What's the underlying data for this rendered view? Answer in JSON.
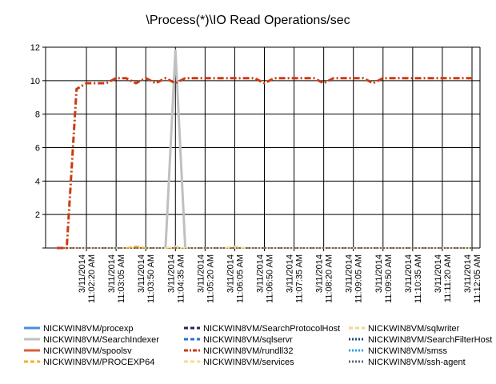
{
  "chart_data": {
    "type": "line",
    "title": "\\Process(*)\\IO Read Operations/sec",
    "xlabel": "",
    "ylabel": "",
    "ylim": [
      0,
      12
    ],
    "yticks": [
      0,
      2,
      4,
      6,
      8,
      10,
      12
    ],
    "ytick_labels": [
      "",
      "2",
      "4",
      "6",
      "8",
      "10",
      "12"
    ],
    "grid": true,
    "legend_position": "bottom",
    "x_tick_labels": [
      [
        "3/11/2014",
        "11:02:20 AM"
      ],
      [
        "3/11/2014",
        "11:03:05 AM"
      ],
      [
        "3/11/2014",
        "11:03:50 AM"
      ],
      [
        "3/11/2014",
        "11:04:35 AM"
      ],
      [
        "3/11/2014",
        "11:05:20 AM"
      ],
      [
        "3/11/2014",
        "11:06:05 AM"
      ],
      [
        "3/11/2014",
        "11:06:50 AM"
      ],
      [
        "3/11/2014",
        "11:07:35 AM"
      ],
      [
        "3/11/2014",
        "11:08:20 AM"
      ],
      [
        "3/11/2014",
        "11:09:05 AM"
      ],
      [
        "3/11/2014",
        "11:09:50 AM"
      ],
      [
        "3/11/2014",
        "11:10:35 AM"
      ],
      [
        "3/11/2014",
        "11:11:20 AM"
      ],
      [
        "3/11/2014",
        "11:12:05 AM"
      ]
    ],
    "x": [
      "11:01:35",
      "11:01:50",
      "11:02:05",
      "11:02:20",
      "11:02:35",
      "11:02:50",
      "11:03:05",
      "11:03:20",
      "11:03:35",
      "11:03:50",
      "11:04:05",
      "11:04:20",
      "11:04:35",
      "11:04:50",
      "11:05:05",
      "11:05:20",
      "11:05:35",
      "11:05:50",
      "11:06:05",
      "11:06:20",
      "11:06:35",
      "11:06:50",
      "11:07:05",
      "11:07:20",
      "11:07:35",
      "11:07:50",
      "11:08:05",
      "11:08:20",
      "11:08:35",
      "11:08:50",
      "11:09:05",
      "11:09:20",
      "11:09:35",
      "11:09:50",
      "11:10:05",
      "11:10:20",
      "11:10:35",
      "11:10:50",
      "11:11:05",
      "11:11:20",
      "11:11:35",
      "11:11:50",
      "11:12:05"
    ],
    "series": [
      {
        "name": "NICKWIN8VM/procexp",
        "color": "#4a90e2",
        "dash": "solid",
        "values": [
          0,
          0,
          0,
          0,
          0,
          0,
          0,
          0,
          0,
          0,
          0,
          0,
          0,
          0,
          0,
          0,
          0,
          0,
          0,
          0,
          0,
          0,
          0,
          0,
          0,
          0,
          0,
          0,
          0,
          0,
          0,
          0,
          0,
          0,
          0,
          0,
          0,
          0,
          0,
          0,
          0,
          0,
          0
        ]
      },
      {
        "name": "NICKWIN8VM/SearchIndexer",
        "color": "#c0c0c0",
        "dash": "solid",
        "values": [
          0,
          0,
          0,
          0,
          0,
          0,
          0,
          0,
          0,
          0,
          0,
          0,
          0,
          0,
          0,
          0,
          0,
          0,
          0,
          0,
          0,
          0,
          0,
          0,
          0,
          0,
          0,
          0,
          0,
          0,
          0,
          0,
          0,
          0,
          0,
          0,
          0,
          0,
          0,
          0,
          0,
          0,
          0
        ]
      },
      {
        "name": "NICKWIN8VM/spoolsv",
        "color": "#d9603b",
        "dash": "solid",
        "values": [
          0,
          0,
          0,
          0,
          0,
          0,
          0,
          0,
          0,
          0,
          0,
          0,
          0,
          0,
          0,
          0,
          0,
          0,
          0,
          0,
          0,
          0,
          0,
          0,
          0,
          0,
          0,
          0,
          0,
          0,
          0,
          0,
          0,
          0,
          0,
          0,
          0,
          0,
          0,
          0,
          0,
          0,
          0
        ]
      },
      {
        "name": "NICKWIN8VM/PROCEXP64",
        "color": "#f0b429",
        "dash": "dash",
        "values": [
          0,
          0,
          0,
          0,
          0,
          0,
          0,
          0,
          0,
          0,
          0,
          0,
          0,
          0,
          0,
          0,
          0,
          0,
          0,
          0,
          0,
          0,
          0,
          0,
          0,
          0,
          0,
          0,
          0,
          0,
          0,
          0,
          0,
          0,
          0,
          0,
          0,
          0,
          0,
          0,
          0,
          0,
          0
        ]
      },
      {
        "name": "NICKWIN8VM/SearchProtocolHost",
        "color": "#1f2d4a",
        "dash": "dash",
        "values": [
          0,
          0,
          0,
          0,
          0,
          0,
          0,
          0,
          0,
          0,
          0,
          0,
          0,
          0,
          0,
          0,
          0,
          0,
          0,
          0,
          0,
          0,
          0,
          0,
          0,
          0,
          0,
          0,
          0,
          0,
          0,
          0,
          0,
          0,
          0,
          0,
          0,
          0,
          0,
          0,
          0,
          0,
          0
        ]
      },
      {
        "name": "NICKWIN8VM/sqlservr",
        "color": "#2a6fdb",
        "dash": "dash",
        "values": [
          0,
          0,
          0,
          0,
          0,
          0,
          0,
          0,
          0,
          0,
          0,
          0,
          0,
          0,
          0,
          0,
          0,
          0,
          0,
          0,
          0,
          0,
          0,
          0,
          0,
          0,
          0,
          0,
          0,
          0,
          0,
          0,
          0,
          0,
          0,
          0,
          0,
          0,
          0,
          0,
          0,
          0,
          0
        ]
      },
      {
        "name": "NICKWIN8VM/rundll32",
        "color": "#cc3a12",
        "dash": "dashdot",
        "values": [
          0,
          0,
          9.5,
          9.85,
          9.85,
          9.85,
          10.15,
          10.15,
          9.85,
          10.15,
          9.85,
          10.15,
          9.85,
          10.15,
          10.15,
          10.15,
          10.15,
          10.15,
          10.15,
          10.15,
          10.15,
          9.85,
          10.15,
          10.15,
          10.15,
          10.15,
          10.15,
          9.85,
          10.15,
          10.15,
          10.15,
          10.15,
          9.85,
          10.15,
          10.15,
          10.15,
          10.15,
          10.15,
          10.15,
          10.15,
          10.15,
          10.15,
          10.15
        ]
      },
      {
        "name": "NICKWIN8VM/services",
        "color": "#f7dc8c",
        "dash": "dash",
        "values": [
          0,
          0,
          0,
          0,
          0,
          0,
          0,
          0,
          0,
          0,
          0,
          0,
          0,
          0,
          0,
          0,
          0,
          0,
          0,
          0,
          0,
          0,
          0,
          0,
          0,
          0,
          0,
          0,
          0,
          0,
          0,
          0,
          0,
          0,
          0,
          0,
          0,
          0,
          0,
          0,
          0,
          0,
          0
        ]
      },
      {
        "name": "NICKWIN8VM/sqlwriter",
        "color": "#f0d78c",
        "dash": "dash",
        "values": [
          0,
          0,
          0,
          0,
          0,
          0,
          0,
          0,
          0,
          0,
          0,
          0,
          0,
          0,
          0,
          0,
          0,
          0,
          0,
          0,
          0,
          0,
          0,
          0,
          0,
          0,
          0,
          0,
          0,
          0,
          0,
          0,
          0,
          0,
          0,
          0,
          0,
          0,
          0,
          0,
          0,
          0,
          0
        ]
      },
      {
        "name": "NICKWIN8VM/SearchFilterHost",
        "color": "#1a4a7a",
        "dash": "dot",
        "values": [
          0,
          0,
          0,
          0,
          0,
          0,
          0,
          0,
          0,
          0,
          0,
          0,
          0,
          0,
          0,
          0,
          0,
          0,
          0,
          0,
          0,
          0,
          0,
          0,
          0,
          0,
          0,
          0,
          0,
          0,
          0,
          0,
          0,
          0,
          0,
          0,
          0,
          0,
          0,
          0,
          0,
          0,
          0
        ]
      },
      {
        "name": "NICKWIN8VM/smss",
        "color": "#2b9fd9",
        "dash": "dot",
        "values": [
          0,
          0,
          0,
          0,
          0,
          0,
          0,
          0,
          0,
          0,
          0,
          0,
          0,
          0,
          0,
          0,
          0,
          0,
          0,
          0,
          0,
          0,
          0,
          0,
          0,
          0,
          0,
          0,
          0,
          0,
          0,
          0,
          0,
          0,
          0,
          0,
          0,
          0,
          0,
          0,
          0,
          0,
          0
        ]
      },
      {
        "name": "NICKWIN8VM/ssh-agent",
        "color": "#556677",
        "dash": "dot",
        "values": [
          0,
          0,
          0,
          0,
          0,
          0,
          0,
          0,
          0,
          0,
          0,
          0,
          0,
          0,
          0,
          0,
          0,
          0,
          0,
          0,
          0,
          0,
          0,
          0,
          0,
          0,
          0,
          0,
          0,
          0,
          0,
          0,
          0,
          0,
          0,
          0,
          0,
          0,
          0,
          0,
          0,
          0,
          0
        ]
      }
    ],
    "overlay_series": [
      {
        "name": "NICKWIN8VM/SearchIndexer",
        "x": [
          "11:04:20",
          "11:04:35",
          "11:04:50"
        ],
        "values": [
          0,
          11.8,
          0
        ]
      },
      {
        "name": "NICKWIN8VM/PROCEXP64",
        "x": [
          "11:03:20",
          "11:03:35",
          "11:03:50"
        ],
        "values": [
          0,
          0.1,
          0
        ]
      },
      {
        "name": "NICKWIN8VM/services",
        "x": [
          "11:04:20",
          "11:04:35",
          "11:04:50"
        ],
        "values": [
          0,
          0.1,
          0
        ]
      },
      {
        "name": "NICKWIN8VM/sqlwriter",
        "x": [
          "11:05:50",
          "11:06:05",
          "11:06:20"
        ],
        "values": [
          0,
          0.1,
          0
        ]
      }
    ]
  }
}
